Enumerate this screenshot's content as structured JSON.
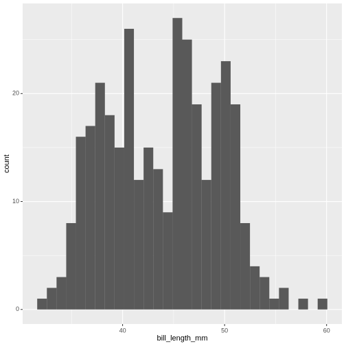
{
  "chart_data": {
    "type": "histogram",
    "x_label": "bill_length_mm",
    "y_label": "count",
    "bins": [
      31.626,
      32.574,
      33.523,
      34.471,
      35.419,
      36.367,
      37.316,
      38.264,
      39.212,
      40.161,
      41.109,
      42.057,
      43.005,
      43.954,
      44.902,
      45.85,
      46.798,
      47.747,
      48.695,
      49.643,
      50.592,
      51.54,
      52.488,
      53.436,
      54.385,
      55.333,
      56.281,
      57.23,
      58.178,
      59.126,
      60.074
    ],
    "values": [
      1,
      2,
      3,
      8,
      16,
      17,
      21,
      18,
      15,
      26,
      12,
      15,
      13,
      9,
      27,
      25,
      19,
      12,
      21,
      23,
      19,
      8,
      4,
      3,
      1,
      2,
      0,
      1,
      0,
      1
    ],
    "color": "#595959",
    "xlim": [
      30.2,
      61.5
    ],
    "xticks": [
      40,
      50,
      60
    ],
    "ylim": [
      -1.35,
      28.35
    ],
    "yticks": [
      0,
      10,
      20
    ],
    "grid": true
  }
}
